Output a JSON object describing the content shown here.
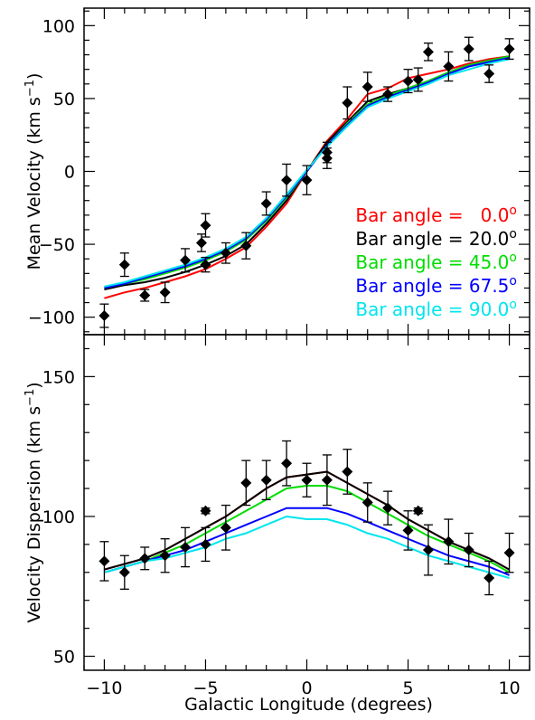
{
  "chart_data": [
    {
      "type": "line",
      "panel": "top",
      "ylabel": "Mean Velocity (km s",
      "ylabel_sup": "−1",
      "ylabel_tail": ")",
      "xlim": [
        -11,
        11
      ],
      "ylim": [
        -112,
        112
      ],
      "yticks": [
        -100,
        -50,
        0,
        50,
        100
      ],
      "ytick_labels": [
        "−100",
        "−50",
        "0",
        "50",
        "100"
      ],
      "legend": [
        {
          "text": "Bar angle =   0.0",
          "sup": "o",
          "color": "#ff0000"
        },
        {
          "text": "Bar angle = 20.0",
          "sup": "o",
          "color": "#000000"
        },
        {
          "text": "Bar angle = 45.0",
          "sup": "o",
          "color": "#00dd00"
        },
        {
          "text": "Bar angle = 67.5",
          "sup": "o",
          "color": "#0000ff"
        },
        {
          "text": "Bar angle = 90.0",
          "sup": "o",
          "color": "#00e5ee"
        }
      ],
      "x": [
        -10,
        -9,
        -8,
        -7,
        -6,
        -5,
        -4,
        -3,
        -2,
        -1,
        0,
        1,
        2,
        3,
        4,
        5,
        6,
        7,
        8,
        9,
        10
      ],
      "series": [
        {
          "name": "Bar angle = 0.0",
          "color": "#ff0000",
          "values": [
            -87,
            -83,
            -80,
            -76,
            -72,
            -67,
            -60,
            -52,
            -38,
            -22,
            0,
            21,
            36,
            53,
            57,
            64,
            67,
            70,
            74,
            77,
            79
          ]
        },
        {
          "name": "Bar angle = 20.0",
          "color": "#000000",
          "values": [
            -81,
            -78,
            -76,
            -73,
            -69,
            -64,
            -58,
            -50,
            -36,
            -20,
            0,
            20,
            34,
            48,
            53,
            57,
            62,
            68,
            73,
            76,
            79
          ]
        },
        {
          "name": "Bar angle = 45.0",
          "color": "#00dd00",
          "values": [
            -80,
            -77,
            -74,
            -70,
            -66,
            -61,
            -55,
            -47,
            -34,
            -18,
            0,
            18,
            33,
            46,
            52,
            57,
            62,
            68,
            73,
            76,
            79
          ]
        },
        {
          "name": "Bar angle = 67.5",
          "color": "#0000ff",
          "values": [
            -80,
            -77,
            -73,
            -69,
            -65,
            -60,
            -54,
            -46,
            -33,
            -17,
            0,
            18,
            32,
            45,
            51,
            56,
            61,
            67,
            72,
            75,
            78
          ]
        },
        {
          "name": "Bar angle = 90.0",
          "color": "#00e5ee",
          "values": [
            -79,
            -76,
            -72,
            -68,
            -64,
            -59,
            -53,
            -45,
            -32,
            -16,
            1,
            17,
            31,
            44,
            50,
            55,
            60,
            66,
            70,
            74,
            77
          ]
        }
      ],
      "observed": {
        "x": [
          -10,
          -9,
          -8,
          -7,
          -6,
          -5.2,
          -5,
          -5,
          -4,
          -3,
          -2,
          -1,
          0,
          1,
          1,
          2,
          3,
          4,
          5,
          5.5,
          6,
          7,
          8,
          9,
          10
        ],
        "y": [
          -99,
          -64,
          -85,
          -83,
          -61,
          -49,
          -37,
          -64,
          -56,
          -51,
          -22,
          -6,
          -6,
          9,
          13,
          47,
          58,
          53,
          62,
          63,
          82,
          72,
          84,
          67,
          84
        ],
        "yerr": [
          8,
          8,
          4,
          7,
          8,
          6,
          8,
          5,
          7,
          9,
          8,
          11,
          10,
          7,
          7,
          11,
          10,
          5,
          8,
          8,
          6,
          10,
          8,
          6,
          7
        ]
      }
    },
    {
      "type": "line",
      "panel": "bottom",
      "xlabel": "Galactic Longitude (degrees)",
      "ylabel": "Velocity Dispersion (km s",
      "ylabel_sup": "−1",
      "ylabel_tail": ")",
      "xlim": [
        -11,
        11
      ],
      "ylim": [
        45,
        165
      ],
      "xticks": [
        -10,
        -5,
        0,
        5,
        10
      ],
      "xtick_labels": [
        "−10",
        "−5",
        "0",
        "5",
        "10"
      ],
      "yticks": [
        50,
        100,
        150
      ],
      "ytick_labels": [
        "50",
        "100",
        "150"
      ],
      "x": [
        -10,
        -9,
        -8,
        -7,
        -6,
        -5,
        -4,
        -3,
        -2,
        -1,
        0,
        1,
        2,
        3,
        4,
        5,
        6,
        7,
        8,
        9,
        10
      ],
      "series": [
        {
          "name": "Bar angle = 0.0",
          "color": "#ff0000",
          "values": [
            81,
            83,
            85,
            88,
            92,
            96,
            100,
            105,
            110,
            114,
            115,
            116,
            112,
            108,
            104,
            99,
            95,
            91,
            88,
            85,
            81
          ]
        },
        {
          "name": "Bar angle = 20.0",
          "color": "#000000",
          "values": [
            81,
            83,
            85,
            88,
            92,
            96,
            100,
            105,
            110,
            114,
            115,
            116,
            112,
            108,
            104,
            99,
            95,
            91,
            88,
            85,
            81
          ]
        },
        {
          "name": "Bar angle = 45.0",
          "color": "#00dd00",
          "values": [
            80,
            82,
            84,
            87,
            90,
            94,
            98,
            102,
            106,
            110,
            111,
            111,
            109,
            105,
            101,
            97,
            93,
            90,
            87,
            84,
            80
          ]
        },
        {
          "name": "Bar angle = 67.5",
          "color": "#0000ff",
          "values": [
            80,
            82,
            84,
            86,
            88,
            91,
            94,
            97,
            100,
            103,
            103,
            103,
            101,
            98,
            95,
            92,
            89,
            86,
            84,
            82,
            79
          ]
        },
        {
          "name": "Bar angle = 90.0",
          "color": "#00e5ee",
          "values": [
            80,
            82,
            84,
            85,
            87,
            89,
            92,
            94,
            97,
            100,
            99,
            99,
            97,
            94,
            92,
            89,
            86,
            84,
            82,
            80,
            78
          ]
        }
      ],
      "observed": {
        "x": [
          -10,
          -9,
          -8,
          -7,
          -6,
          -5,
          -5,
          -4,
          -3,
          -2,
          -1,
          0,
          1,
          2,
          3,
          4,
          5,
          5.5,
          6,
          7,
          8,
          9,
          10
        ],
        "y": [
          84,
          80,
          85,
          86,
          89,
          102,
          90,
          96,
          112,
          113,
          119,
          113,
          113,
          116,
          105,
          103,
          95,
          102,
          88,
          91,
          88,
          78,
          87
        ],
        "yerr": [
          7,
          6,
          4,
          6,
          7,
          1,
          6,
          8,
          8,
          7,
          8,
          6,
          9,
          8,
          7,
          6,
          7,
          1,
          9,
          8,
          6,
          6,
          7
        ]
      }
    }
  ]
}
